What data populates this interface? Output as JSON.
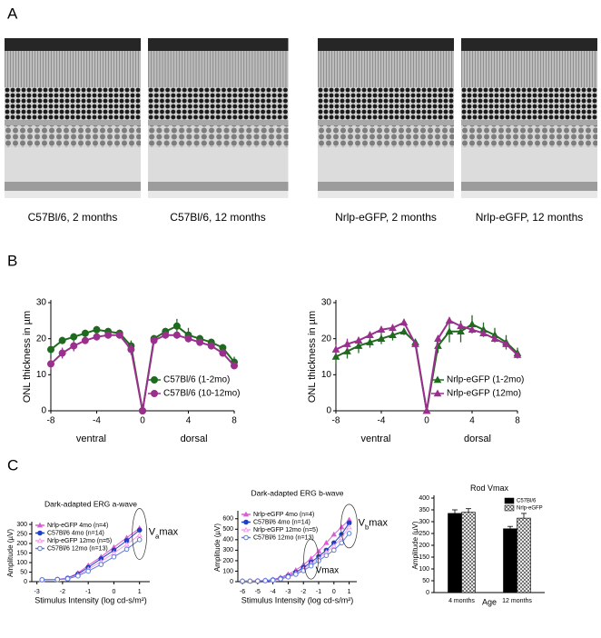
{
  "panel_labels": [
    "A",
    "B",
    "C"
  ],
  "captions": [
    "C57Bl/6, 2 months",
    "C57Bl/6, 12 months",
    "Nrlp-eGFP, 2 months",
    "Nrlp-eGFP, 12 months"
  ],
  "chart_data": [
    {
      "type": "line",
      "y_label": "ONL thickness in µm",
      "x_annotations": [
        "ventral",
        "dorsal"
      ],
      "x": [
        -8,
        -7,
        -6,
        -5,
        -4,
        -3,
        -2,
        -1,
        0,
        1,
        2,
        3,
        4,
        5,
        6,
        7,
        8
      ],
      "xlim": [
        -8,
        8
      ],
      "xticks": [
        -8,
        -4,
        0,
        4,
        8
      ],
      "ylim": [
        0,
        30
      ],
      "yticks": [
        0,
        10,
        20,
        30
      ],
      "legend": "lower right",
      "series": [
        {
          "name": "C57Bl/6 (1-2mo)",
          "color": "#1e6b1e",
          "marker": "circle",
          "values": [
            17,
            19.5,
            20.5,
            21.5,
            22.5,
            22,
            21.5,
            18,
            0,
            20,
            22,
            23.5,
            21,
            20,
            19,
            17.5,
            13.5
          ],
          "errors": [
            1.5,
            1,
            1,
            1,
            1,
            1,
            1,
            1.5,
            0,
            1,
            1,
            2,
            2,
            1,
            1,
            1,
            1.5
          ]
        },
        {
          "name": "C57Bl/6 (10-12mo)",
          "color": "#9b2f8e",
          "marker": "circle",
          "values": [
            13,
            16,
            18,
            19.5,
            20.5,
            21,
            21,
            17,
            0,
            19.5,
            21,
            21,
            20,
            19,
            18,
            16,
            12.5
          ],
          "errors": [
            1.5,
            1.5,
            1.5,
            1,
            1,
            1,
            1,
            1.5,
            0,
            1,
            1,
            1,
            1,
            1,
            1,
            1,
            1
          ]
        }
      ]
    },
    {
      "type": "line",
      "y_label": "ONL thickness in µm",
      "x_annotations": [
        "ventral",
        "dorsal"
      ],
      "x": [
        -8,
        -7,
        -6,
        -5,
        -4,
        -3,
        -2,
        -1,
        0,
        1,
        2,
        3,
        4,
        5,
        6,
        7,
        8
      ],
      "xlim": [
        -8,
        8
      ],
      "xticks": [
        -8,
        -4,
        0,
        4,
        8
      ],
      "ylim": [
        0,
        30
      ],
      "yticks": [
        0,
        10,
        20,
        30
      ],
      "legend": "lower right",
      "series": [
        {
          "name": "Nrlp-eGFP (1-2mo)",
          "color": "#1e6b1e",
          "marker": "triangle",
          "values": [
            15,
            16.5,
            18,
            19,
            20,
            21,
            22,
            19,
            0,
            18,
            22,
            22,
            24,
            22.5,
            21,
            19,
            16
          ],
          "errors": [
            2,
            2,
            2,
            1.5,
            1.5,
            1.5,
            1,
            1,
            0,
            2,
            3,
            3,
            2.5,
            2,
            2,
            2,
            1.5
          ]
        },
        {
          "name": "Nrlp-eGFP (12mo)",
          "color": "#9b2f8e",
          "marker": "triangle",
          "values": [
            17,
            18.5,
            19.5,
            21,
            22.5,
            23,
            24.5,
            18.5,
            0,
            20,
            25,
            23.5,
            22.5,
            21.5,
            20,
            18.5,
            15.5
          ],
          "errors": [
            1.5,
            1.5,
            1,
            1,
            1,
            1,
            1,
            1,
            0,
            1,
            1,
            1,
            1,
            1,
            1,
            1,
            1
          ]
        }
      ]
    },
    {
      "type": "line",
      "title": "Dark-adapted ERG a-wave",
      "x_label": "Stimulus Intensity (log cd-s/m²)",
      "y_label": "Amplitude (µV)",
      "annotations": [
        [
          "V",
          "a",
          "max"
        ]
      ],
      "x": [
        -2.8,
        -2.2,
        -1.8,
        -1.4,
        -1.0,
        -0.5,
        0,
        0.5,
        1.0
      ],
      "xlim": [
        -3.2,
        1.4
      ],
      "xticks": [
        -3,
        -2,
        -1,
        0,
        1
      ],
      "ylim": [
        0,
        300
      ],
      "yticks": [
        0,
        50,
        100,
        150,
        200,
        250,
        300
      ],
      "legend": "upper left",
      "series": [
        {
          "name": "Nrlp-eGFP 4mo (n=4)",
          "color": "#e05ad6",
          "marker": "triangle",
          "values": [
            10,
            12,
            20,
            45,
            85,
            130,
            180,
            230,
            280
          ]
        },
        {
          "name": "C57Bl/6 4mo (n=14)",
          "color": "#1f3fc4",
          "marker": "circle",
          "values": [
            10,
            12,
            18,
            40,
            75,
            120,
            165,
            215,
            270
          ]
        },
        {
          "name": "Nrlp-eGFP 12mo (n=5)",
          "color": "#f2a0ea",
          "marker": "open-triangle",
          "values": [
            10,
            12,
            17,
            35,
            65,
            105,
            150,
            195,
            245
          ]
        },
        {
          "name": "C57Bl/6 12mo (n=13)",
          "color": "#5a7be0",
          "marker": "open-circle",
          "values": [
            10,
            11,
            15,
            30,
            55,
            90,
            130,
            170,
            220
          ]
        }
      ]
    },
    {
      "type": "line",
      "title": "Dark-adapted ERG b-wave",
      "x_label": "Stimulus Intensity (log cd-s/m²)",
      "y_label": "Amplitude (µV)",
      "annotations": [
        [
          "V",
          "b",
          "max"
        ],
        [
          "Vmax"
        ]
      ],
      "x": [
        -6,
        -5.5,
        -5,
        -4.5,
        -4,
        -3.5,
        -3,
        -2.5,
        -2,
        -1.5,
        -1,
        -0.5,
        0,
        0.5,
        1
      ],
      "xlim": [
        -6.3,
        1.5
      ],
      "xticks": [
        -6,
        -5,
        -4,
        -3,
        -2,
        -1,
        0,
        1
      ],
      "ylim": [
        0,
        650
      ],
      "yticks": [
        0,
        100,
        200,
        300,
        400,
        500,
        600
      ],
      "legend": "upper left",
      "series": [
        {
          "name": "Nrlp-eGFP 4mo (n=4)",
          "color": "#e05ad6",
          "marker": "triangle",
          "values": [
            5,
            5,
            8,
            12,
            20,
            40,
            70,
            110,
            160,
            220,
            290,
            370,
            450,
            520,
            590
          ]
        },
        {
          "name": "C57Bl/6 4mo (n=14)",
          "color": "#1f3fc4",
          "marker": "circle",
          "values": [
            5,
            5,
            7,
            10,
            17,
            30,
            55,
            90,
            135,
            185,
            240,
            300,
            370,
            450,
            560
          ]
        },
        {
          "name": "Nrlp-eGFP 12mo (n=5)",
          "color": "#f2a0ea",
          "marker": "open-triangle",
          "values": [
            5,
            5,
            7,
            10,
            15,
            28,
            50,
            80,
            120,
            170,
            220,
            280,
            340,
            420,
            520
          ]
        },
        {
          "name": "C57Bl/6 12mo (n=13)",
          "color": "#5a7be0",
          "marker": "open-circle",
          "values": [
            5,
            5,
            6,
            9,
            14,
            25,
            45,
            70,
            105,
            150,
            200,
            250,
            300,
            370,
            460
          ]
        }
      ]
    },
    {
      "type": "bar",
      "title": [
        "Rod V",
        "max"
      ],
      "x_label": "Age",
      "y_label": "Amplitude (µV)",
      "categories": [
        "4 months",
        "12 months"
      ],
      "ylim": [
        0,
        400
      ],
      "yticks": [
        0,
        50,
        100,
        150,
        200,
        250,
        300,
        350,
        400
      ],
      "legend": "upper right",
      "series": [
        {
          "name": "C57Bl/6",
          "color": "#000000",
          "pattern": "solid",
          "values": [
            335,
            270
          ],
          "errors": [
            15,
            10
          ]
        },
        {
          "name": "Nrlp-eGFP",
          "color": "#555555",
          "pattern": "crosshatch",
          "values": [
            340,
            315
          ],
          "errors": [
            15,
            20
          ]
        }
      ]
    }
  ]
}
